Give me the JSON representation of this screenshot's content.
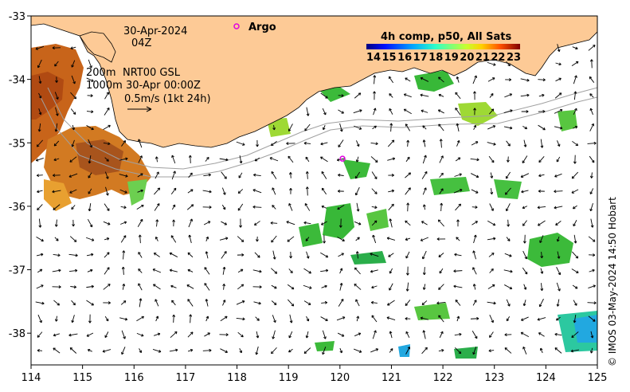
{
  "map": {
    "lon_range": [
      114,
      125
    ],
    "lat_range": [
      -38.5,
      -33
    ],
    "lon_ticks": [
      "114",
      "115",
      "116",
      "117",
      "118",
      "119",
      "120",
      "121",
      "122",
      "123",
      "124",
      "125"
    ],
    "lat_ticks": [
      "-33",
      "-34",
      "-35",
      "-36",
      "-37",
      "-38"
    ],
    "land_color": "#fdca96",
    "background": "#ffffff"
  },
  "annotations": {
    "date": "30-Apr-2024",
    "hour": "04Z",
    "contour1": "200m",
    "contour2": "1000m",
    "source": "NRT00 GSL",
    "valid_time": "30-Apr 00:00Z",
    "scale": "0.5m/s (1kt 24h)"
  },
  "argo": {
    "label": "Argo",
    "color": "#e000e0",
    "float_lon": 120.05,
    "float_lat": -35.25
  },
  "colorbar": {
    "title": "4h comp, p50, All Sats",
    "ticks": [
      "14",
      "15",
      "16",
      "17",
      "18",
      "19",
      "20",
      "21",
      "22",
      "23"
    ],
    "colors": [
      "#00007f",
      "#0010ff",
      "#00a4ff",
      "#2fffc7",
      "#7cff7a",
      "#c7ff2f",
      "#ffd000",
      "#ff5100",
      "#d30000",
      "#7f0000"
    ]
  },
  "credit": "© IMOS 03-May-2024 14:50 Hobart"
}
